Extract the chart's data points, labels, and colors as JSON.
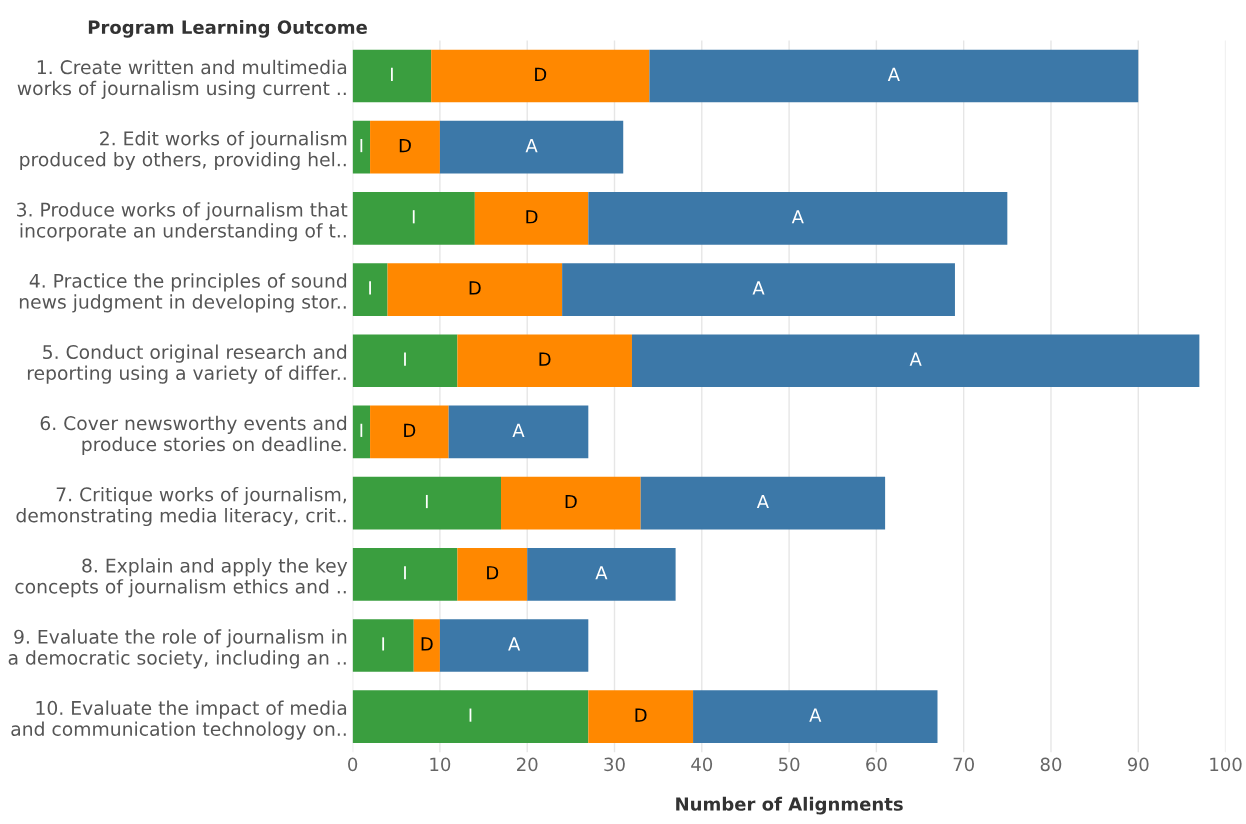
{
  "chart_data": {
    "type": "bar",
    "orientation": "horizontal",
    "stacked": true,
    "ylabel": "Program Learning Outcome",
    "xlabel": "Number of Alignments",
    "categories": [
      "1. Create written and multimedia\nworks of journalism using current ..",
      "2. Edit works of journalism\nproduced by others, providing hel..",
      "3. Produce works of journalism that\nincorporate an understanding of t..",
      "4. Practice the principles of sound\nnews judgment in developing stor..",
      "5. Conduct original research and\nreporting using a variety of differ..",
      "6. Cover newsworthy events and\nproduce stories on deadline.",
      "7. Critique works of journalism,\ndemonstrating media literacy, crit..",
      "8. Explain and apply the key\nconcepts of journalism ethics and ..",
      "9. Evaluate the role of journalism in\na democratic society, including an ..",
      "10. Evaluate the impact of media\nand communication technology on.."
    ],
    "series": [
      {
        "name": "I",
        "color": "#3a9e3f",
        "values": [
          9,
          2,
          14,
          4,
          12,
          2,
          17,
          12,
          7,
          27
        ]
      },
      {
        "name": "D",
        "color": "#ff8800",
        "values": [
          25,
          8,
          13,
          20,
          20,
          9,
          16,
          8,
          3,
          12
        ]
      },
      {
        "name": "A",
        "color": "#3c78a8",
        "values": [
          56,
          21,
          48,
          45,
          65,
          16,
          28,
          17,
          17,
          28
        ]
      }
    ],
    "xlim": [
      0,
      100
    ],
    "xticks": [
      0,
      10,
      20,
      30,
      40,
      50,
      60,
      70,
      80,
      90,
      100
    ],
    "grid": "x",
    "legend": false
  }
}
